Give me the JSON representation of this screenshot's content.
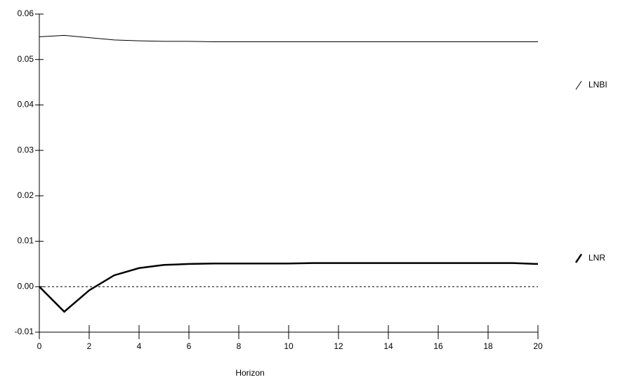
{
  "chart_data": {
    "type": "line",
    "x_label": "Horizon",
    "x": [
      0,
      1,
      2,
      3,
      4,
      5,
      6,
      7,
      8,
      9,
      10,
      11,
      12,
      13,
      14,
      15,
      16,
      17,
      18,
      19,
      20
    ],
    "series": [
      {
        "name": "LNBI",
        "color": "#000000",
        "line_width": 1,
        "values": [
          0.055,
          0.0553,
          0.0548,
          0.0543,
          0.0541,
          0.054,
          0.054,
          0.0539,
          0.0539,
          0.0539,
          0.0539,
          0.0539,
          0.0539,
          0.0539,
          0.0539,
          0.0539,
          0.0539,
          0.0539,
          0.0539,
          0.0539,
          0.0539
        ]
      },
      {
        "name": "LNR",
        "color": "#000000",
        "line_width": 2.5,
        "values": [
          0,
          -0.0055,
          -0.0008,
          0.0025,
          0.0041,
          0.0048,
          0.005,
          0.0051,
          0.0051,
          0.0051,
          0.0051,
          0.0052,
          0.0052,
          0.0052,
          0.0052,
          0.0052,
          0.0052,
          0.0052,
          0.0052,
          0.0052,
          0.005
        ]
      }
    ],
    "xlim": [
      0,
      20
    ],
    "xticks": [
      0,
      2,
      4,
      6,
      8,
      10,
      12,
      14,
      16,
      18,
      20
    ],
    "ylim": [
      -0.01,
      0.06
    ],
    "yticks": [
      -0.01,
      {
        "value": 0,
        "label": "0.00"
      },
      0.01,
      0.02,
      0.03,
      0.04,
      0.05,
      0.06
    ],
    "zero_line": true
  }
}
